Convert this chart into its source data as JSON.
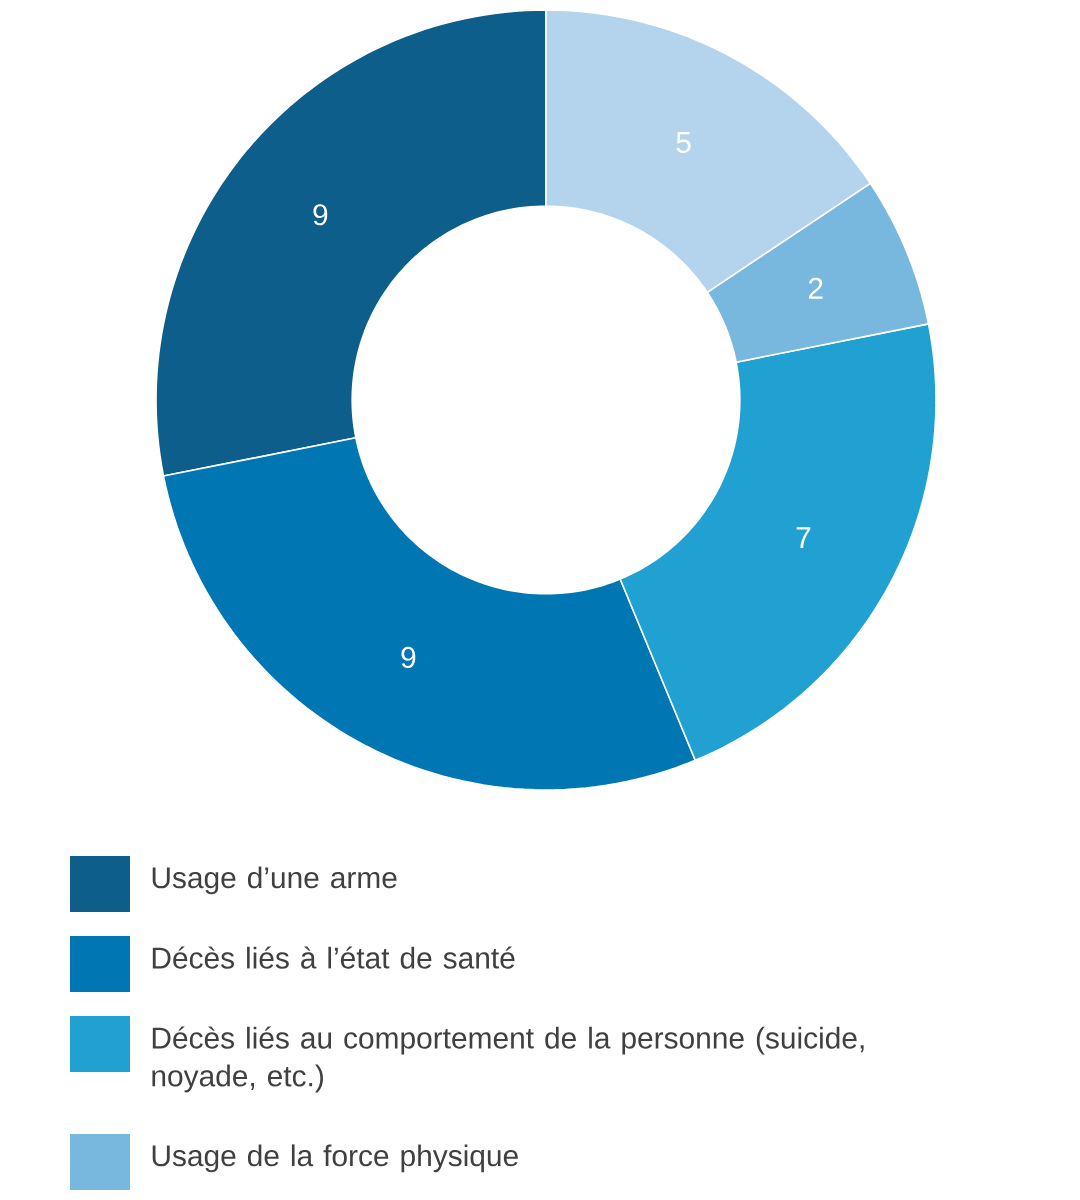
{
  "chart_data": {
    "type": "donut",
    "categories": [
      "Usage d’une arme",
      "Décès liés à l’état de santé",
      "Décès liés au comportement de la personne (suicide, noyade, etc.)",
      "Usage de la force physique",
      null
    ],
    "values": [
      9,
      9,
      7,
      2,
      5
    ],
    "colors": [
      "#0d5e8a",
      "#0077b3",
      "#21a0d2",
      "#79b8de",
      "#b3d4ec"
    ],
    "data_labels": true,
    "legend": "bottom"
  }
}
